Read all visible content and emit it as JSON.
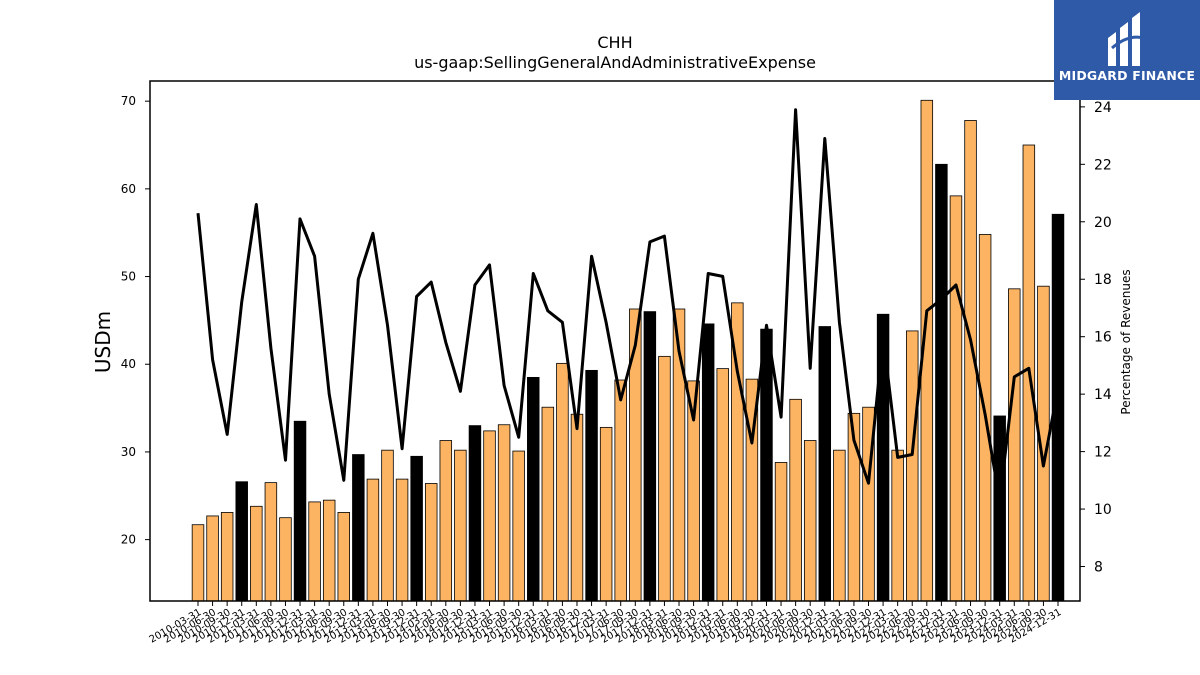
{
  "chart_data": {
    "type": "bar",
    "title": "CHH",
    "subtitle": "us-gaap:SellingGeneralAndAdministrativeExpense",
    "ylabel": "USDm",
    "y2label": "Percentage of Revenues",
    "ylim": [
      13,
      72.3
    ],
    "y2lim": [
      6.8,
      24.9
    ],
    "yticks": [
      20,
      30,
      40,
      50,
      60,
      70
    ],
    "y2ticks": [
      8,
      10,
      12,
      14,
      16,
      18,
      20,
      22,
      24
    ],
    "categories": [
      "2010-03-31",
      "2010-06-30",
      "2010-09-30",
      "2010-12-31",
      "2011-03-31",
      "2011-06-30",
      "2011-09-30",
      "2011-12-31",
      "2012-03-31",
      "2012-06-30",
      "2012-09-30",
      "2012-12-31",
      "2013-03-31",
      "2013-06-30",
      "2013-09-30",
      "2013-12-31",
      "2014-03-31",
      "2014-06-30",
      "2014-09-30",
      "2014-12-31",
      "2015-03-31",
      "2015-06-30",
      "2015-09-30",
      "2015-12-31",
      "2016-03-31",
      "2016-06-30",
      "2016-09-30",
      "2016-12-31",
      "2017-03-31",
      "2017-06-30",
      "2017-09-30",
      "2017-12-31",
      "2018-03-31",
      "2018-06-30",
      "2018-09-30",
      "2018-12-31",
      "2019-03-31",
      "2019-06-30",
      "2019-09-30",
      "2019-12-31",
      "2020-03-31",
      "2020-06-30",
      "2020-09-30",
      "2020-12-31",
      "2021-03-31",
      "2021-06-30",
      "2021-09-30",
      "2021-12-31",
      "2022-03-31",
      "2022-06-30",
      "2022-09-30",
      "2022-12-31",
      "2023-03-31",
      "2023-06-30",
      "2023-09-30",
      "2023-12-31",
      "2024-03-31",
      "2024-06-30",
      "2024-09-30",
      "2024-12-31"
    ],
    "series": [
      {
        "kind": "bar",
        "values": [
          21.7,
          22.7,
          23.1,
          26.6,
          23.8,
          26.5,
          22.5,
          33.5,
          24.3,
          24.5,
          23.1,
          29.7,
          26.9,
          30.2,
          26.9,
          29.5,
          26.4,
          31.3,
          30.2,
          33.0,
          32.4,
          33.1,
          30.1,
          38.5,
          35.1,
          40.1,
          34.3,
          39.3,
          32.8,
          38.2,
          46.3,
          46.0,
          40.9,
          46.3,
          38.1,
          44.6,
          39.5,
          47.0,
          38.3,
          44.0,
          28.8,
          36.0,
          31.3,
          44.3,
          30.2,
          34.4,
          35.1,
          45.7,
          30.2,
          43.8,
          70.1,
          62.8,
          59.2,
          67.8,
          54.8,
          34.1,
          48.6,
          65.0,
          48.9,
          57.1
        ],
        "highlight": [
          false,
          false,
          false,
          true,
          false,
          false,
          false,
          true,
          false,
          false,
          false,
          true,
          false,
          false,
          false,
          true,
          false,
          false,
          false,
          true,
          false,
          false,
          false,
          true,
          false,
          false,
          false,
          true,
          false,
          false,
          false,
          true,
          false,
          false,
          false,
          true,
          false,
          false,
          false,
          true,
          false,
          false,
          false,
          true,
          false,
          false,
          false,
          true,
          false,
          false,
          false,
          true,
          false,
          false,
          false,
          true,
          false,
          false,
          false,
          true
        ]
      },
      {
        "kind": "line",
        "axis": "right",
        "values": [
          20.3,
          15.2,
          12.6,
          17.2,
          20.6,
          15.6,
          11.7,
          20.1,
          18.8,
          14.0,
          11.0,
          18.0,
          19.6,
          16.4,
          12.1,
          17.4,
          17.9,
          15.8,
          14.1,
          17.8,
          18.5,
          14.3,
          12.5,
          18.2,
          16.9,
          16.5,
          12.8,
          18.8,
          16.5,
          13.8,
          15.7,
          19.3,
          19.5,
          15.5,
          13.1,
          18.2,
          18.1,
          14.8,
          12.3,
          16.4,
          13.2,
          23.9,
          14.9,
          22.9,
          16.5,
          12.4,
          10.9,
          16.0,
          11.8,
          11.9,
          16.9,
          17.3,
          17.8,
          15.9,
          13.3,
          10.3,
          14.6,
          14.9,
          11.5,
          14.2
        ]
      }
    ],
    "colors": {
      "bar": "#fdb462",
      "bar_highlight": "#000000",
      "bar_edge": "#000000",
      "line": "#000000"
    }
  },
  "logo": {
    "text": "MIDGARD FINANCE",
    "background": "#2f5aa8"
  }
}
